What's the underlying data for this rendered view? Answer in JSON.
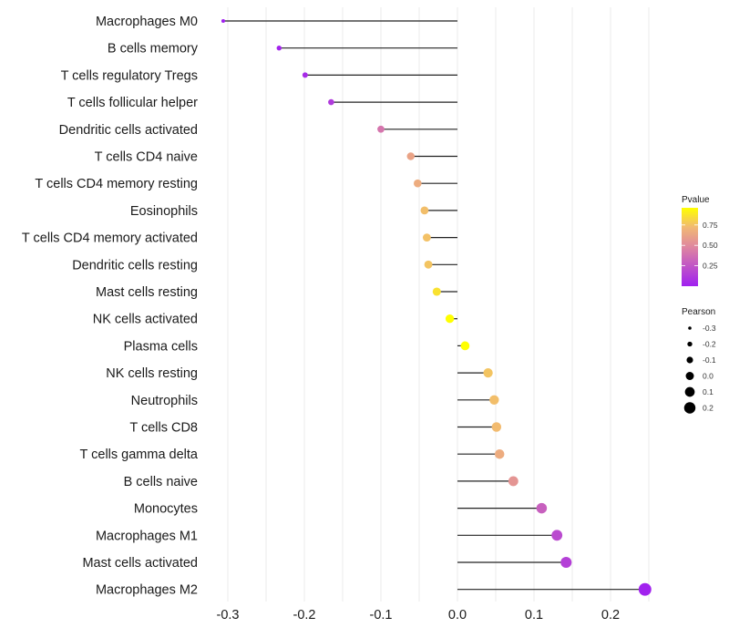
{
  "chart_data": {
    "type": "lollipop",
    "title": "",
    "xlabel": "",
    "ylabel": "",
    "xlim": [
      -0.31,
      0.25
    ],
    "x_ticks": [
      -0.3,
      -0.2,
      -0.1,
      0.0,
      0.1,
      0.2
    ],
    "x_tick_labels": [
      "-0.3",
      "-0.2",
      "-0.1",
      "0.0",
      "0.1",
      "0.2"
    ],
    "grid": true,
    "categories": [
      "Macrophages M0",
      "B cells memory",
      "T cells regulatory  Tregs ",
      "T cells follicular helper",
      "Dendritic cells activated",
      "T cells CD4 naive",
      "T cells CD4 memory resting",
      "Eosinophils",
      "T cells CD4 memory activated",
      "Dendritic cells resting",
      "Mast cells resting",
      "NK cells activated",
      "Plasma cells",
      "NK cells resting",
      "Neutrophils",
      "T cells CD8",
      "T cells gamma delta",
      "B cells naive",
      "Monocytes",
      "Macrophages M1",
      "Mast cells activated",
      "Macrophages M2"
    ],
    "pearson": [
      -0.306,
      -0.233,
      -0.199,
      -0.165,
      -0.1,
      -0.061,
      -0.052,
      -0.043,
      -0.04,
      -0.038,
      -0.027,
      -0.01,
      0.01,
      0.04,
      0.048,
      0.051,
      0.055,
      0.073,
      0.11,
      0.13,
      0.142,
      0.245
    ],
    "pvalue": [
      0.0,
      0.02,
      0.05,
      0.12,
      0.4,
      0.62,
      0.66,
      0.74,
      0.75,
      0.76,
      0.86,
      0.96,
      0.96,
      0.76,
      0.74,
      0.73,
      0.66,
      0.55,
      0.3,
      0.2,
      0.15,
      0.01
    ],
    "legend": {
      "placement": "right",
      "color": {
        "title": "Pvalue",
        "ticks": [
          "0.75",
          "0.50",
          "0.25"
        ],
        "tick_values": [
          0.75,
          0.5,
          0.25
        ],
        "range": [
          0.0,
          0.96
        ],
        "low_color": "#a020f0",
        "mid_color": "#d478a8",
        "high_color": "#ffff00"
      },
      "size": {
        "title": "Pearson",
        "labels": [
          "-0.3",
          "-0.2",
          "-0.1",
          "0.0",
          "0.1",
          "0.2"
        ],
        "values": [
          -0.3,
          -0.2,
          -0.1,
          0.0,
          0.1,
          0.2
        ]
      }
    }
  }
}
